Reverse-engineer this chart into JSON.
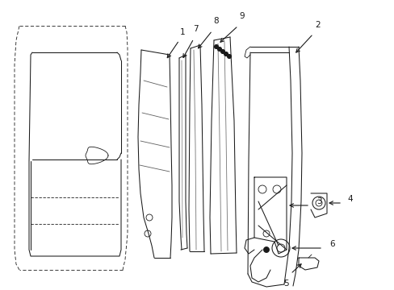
{
  "background_color": "#ffffff",
  "fig_width": 4.89,
  "fig_height": 3.6,
  "dpi": 100,
  "line_color": "#1a1a1a",
  "lw_main": 0.9,
  "lw_thin": 0.6,
  "lw_med": 0.75,
  "label_fontsize": 7.5
}
